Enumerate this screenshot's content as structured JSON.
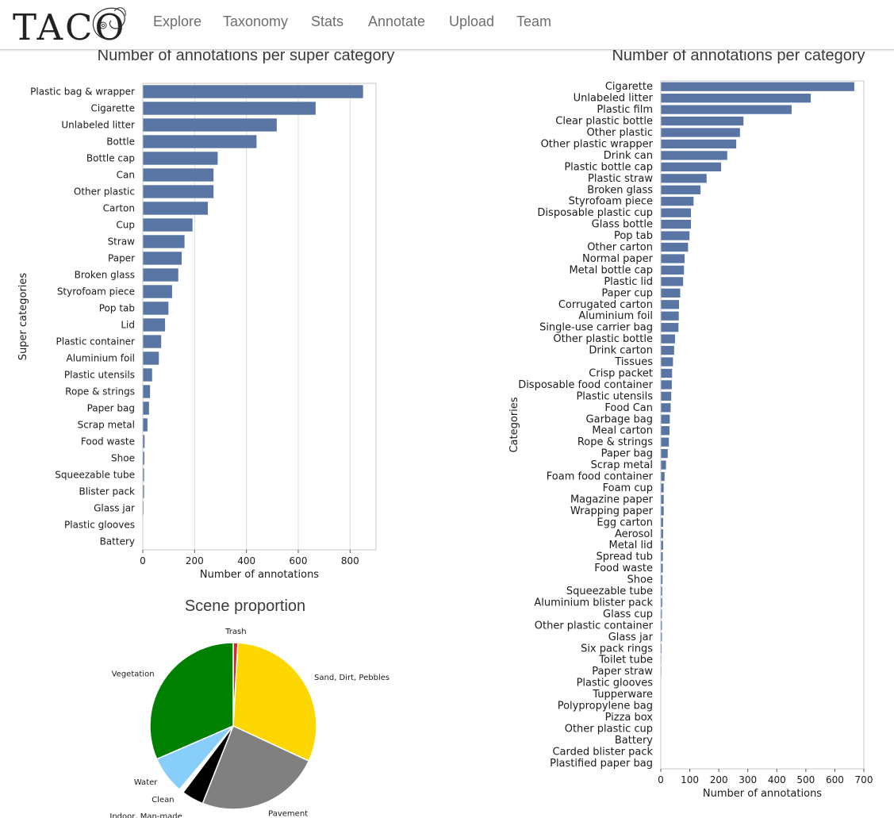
{
  "navbar": {
    "logo_text": "TACO",
    "links": [
      "Explore",
      "Taxonomy",
      "Stats",
      "Annotate",
      "Upload",
      "Team"
    ]
  },
  "colors": {
    "bar": "#5975a4",
    "gridline": "#d9d9d9",
    "axis": "#555555"
  },
  "chart_data": [
    {
      "type": "bar",
      "orientation": "horizontal",
      "title": "Number of annotations per super category",
      "xlabel": "Number of annotations",
      "ylabel": "Super categories",
      "xlim": [
        0,
        900
      ],
      "xticks": [
        0,
        200,
        400,
        600,
        800
      ],
      "grid": "vertical",
      "categories": [
        "Plastic bag & wrapper",
        "Cigarette",
        "Unlabeled litter",
        "Bottle",
        "Bottle cap",
        "Can",
        "Other plastic",
        "Carton",
        "Cup",
        "Straw",
        "Paper",
        "Broken glass",
        "Styrofoam piece",
        "Pop tab",
        "Lid",
        "Plastic container",
        "Aluminium foil",
        "Plastic utensils",
        "Rope & strings",
        "Paper bag",
        "Scrap metal",
        "Food waste",
        "Shoe",
        "Squeezable tube",
        "Blister pack",
        "Glass jar",
        "Plastic glooves",
        "Battery"
      ],
      "values": [
        850,
        667,
        517,
        439,
        289,
        273,
        273,
        251,
        192,
        161,
        150,
        137,
        113,
        99,
        86,
        71,
        62,
        36,
        28,
        24,
        18,
        7,
        6,
        5,
        5,
        3,
        1,
        1
      ]
    },
    {
      "type": "bar",
      "orientation": "horizontal",
      "title": "Number of annotations per category",
      "xlabel": "Number of annotations",
      "ylabel": "Categories",
      "xlim": [
        0,
        700
      ],
      "xticks": [
        0,
        100,
        200,
        300,
        400,
        500,
        600,
        700
      ],
      "grid": "none",
      "categories": [
        "Cigarette",
        "Unlabeled litter",
        "Plastic film",
        "Clear plastic bottle",
        "Other plastic",
        "Other plastic wrapper",
        "Drink can",
        "Plastic bottle cap",
        "Plastic straw",
        "Broken glass",
        "Styrofoam piece",
        "Disposable plastic cup",
        "Glass bottle",
        "Pop tab",
        "Other carton",
        "Normal paper",
        "Metal bottle cap",
        "Plastic lid",
        "Paper cup",
        "Corrugated carton",
        "Aluminium foil",
        "Single-use carrier bag",
        "Other plastic bottle",
        "Drink carton",
        "Tissues",
        "Crisp packet",
        "Disposable food container",
        "Plastic utensils",
        "Food Can",
        "Garbage bag",
        "Meal carton",
        "Rope & strings",
        "Paper bag",
        "Scrap metal",
        "Foam food container",
        "Foam cup",
        "Magazine paper",
        "Wrapping paper",
        "Egg carton",
        "Aerosol",
        "Metal lid",
        "Spread tub",
        "Food waste",
        "Shoe",
        "Squeezable tube",
        "Aluminium blister pack",
        "Glass cup",
        "Other plastic container",
        "Glass jar",
        "Six pack rings",
        "Toilet tube",
        "Paper straw",
        "Plastic glooves",
        "Tupperware",
        "Polypropylene bag",
        "Pizza box",
        "Other plastic cup",
        "Battery",
        "Carded blister pack",
        "Plastified paper bag"
      ],
      "values": [
        667,
        517,
        451,
        285,
        273,
        260,
        229,
        208,
        158,
        137,
        113,
        104,
        104,
        99,
        94,
        82,
        80,
        77,
        67,
        63,
        62,
        61,
        49,
        46,
        42,
        39,
        38,
        36,
        34,
        31,
        30,
        28,
        24,
        18,
        13,
        10,
        10,
        10,
        8,
        8,
        8,
        7,
        7,
        6,
        5,
        5,
        4,
        4,
        4,
        3,
        2,
        2,
        1,
        1,
        1,
        1,
        1,
        1,
        1,
        1
      ]
    },
    {
      "type": "pie",
      "title": "Scene proportion",
      "labels": [
        "Trash",
        "Sand, Dirt, Pebbles",
        "Pavement",
        "Indoor, Man-made",
        "Clean",
        "Water",
        "Vegetation"
      ],
      "values": [
        0.9,
        31.0,
        24.1,
        4.3,
        0.9,
        7.3,
        31.5
      ],
      "colors": [
        "#d62728",
        "#ffd700",
        "#808080",
        "#000000",
        "#ffffff",
        "#87cefa",
        "#008000"
      ],
      "start_angle_deg": 90,
      "direction": "clockwise"
    }
  ]
}
